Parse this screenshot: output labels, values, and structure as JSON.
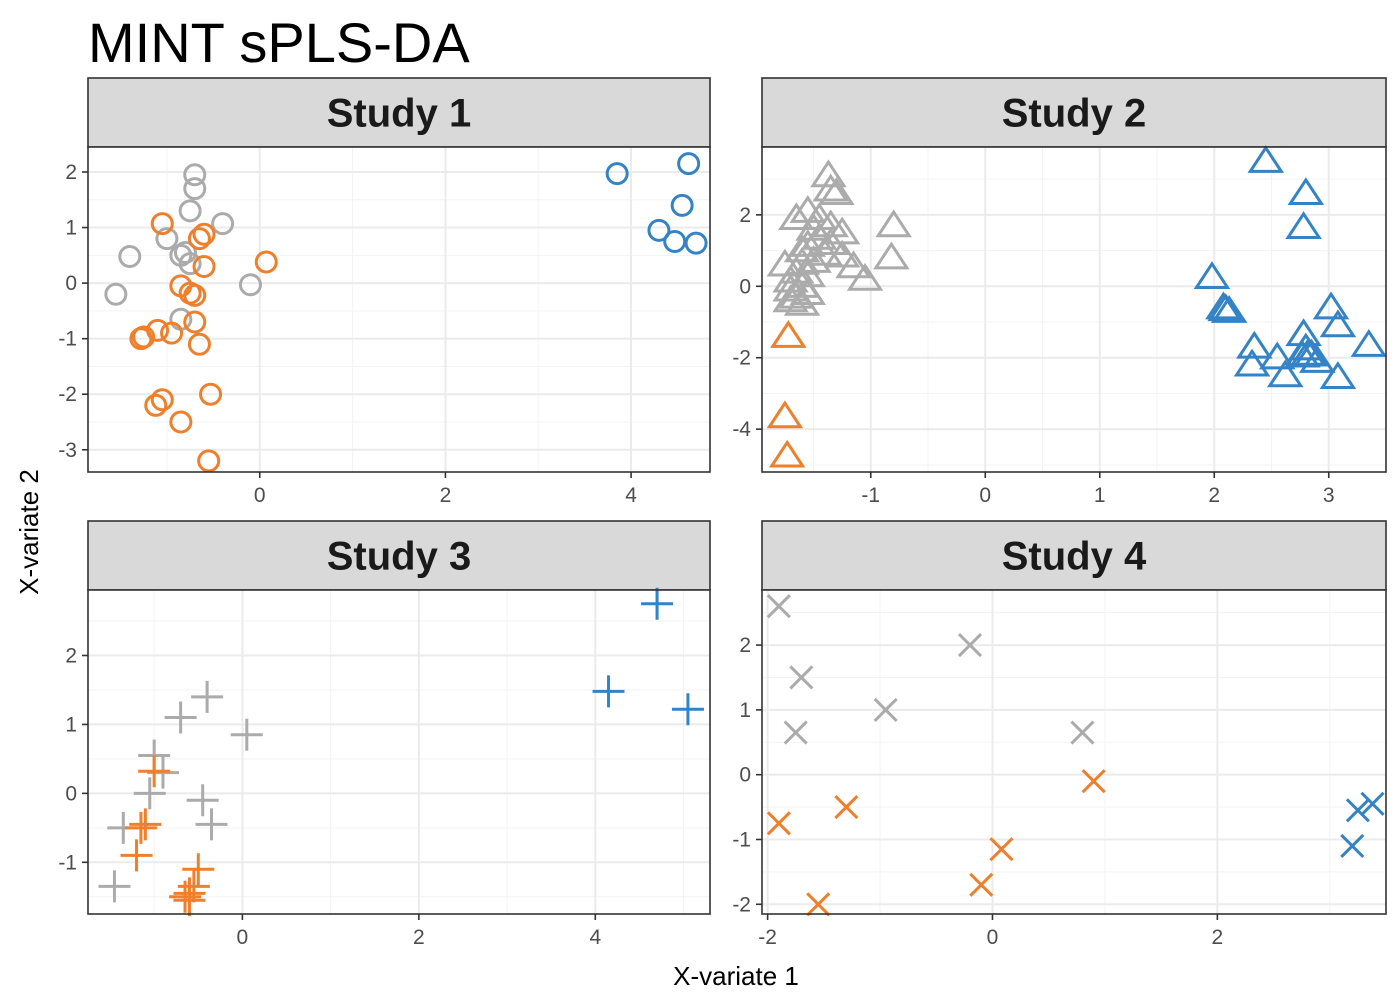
{
  "chart_data": {
    "type": "scatter",
    "title": "MINT sPLS-DA",
    "xlabel": "X-variate 1",
    "ylabel": "X-variate 2",
    "grid": true,
    "legend": "none",
    "group_colors": {
      "grey": "#ababab",
      "orange": "#f07f2b",
      "blue": "#3483c7"
    },
    "panels": [
      {
        "label": "Study 1",
        "marker": "circle",
        "xlim": [
          -1.85,
          4.85
        ],
        "ylim": [
          -3.4,
          2.45
        ],
        "xticks": [
          0,
          2,
          4
        ],
        "yticks": [
          -3,
          -2,
          -1,
          0,
          1,
          2
        ],
        "groups": [
          {
            "color": "grey",
            "points": [
              [
                -0.7,
                1.95
              ],
              [
                -0.7,
                1.7
              ],
              [
                -0.75,
                1.3
              ],
              [
                -0.4,
                1.07
              ],
              [
                -1.0,
                0.8
              ],
              [
                -0.85,
                0.5
              ],
              [
                -0.8,
                0.55
              ],
              [
                -0.75,
                0.35
              ],
              [
                -1.4,
                0.48
              ],
              [
                -1.55,
                -0.2
              ],
              [
                -0.1,
                -0.03
              ],
              [
                -0.85,
                -0.65
              ]
            ]
          },
          {
            "color": "orange",
            "points": [
              [
                -1.05,
                1.07
              ],
              [
                -0.6,
                0.88
              ],
              [
                -0.65,
                0.8
              ],
              [
                -0.6,
                0.3
              ],
              [
                0.07,
                0.38
              ],
              [
                -0.85,
                -0.05
              ],
              [
                -0.75,
                -0.18
              ],
              [
                -0.7,
                -0.22
              ],
              [
                -0.7,
                -0.7
              ],
              [
                -0.95,
                -0.9
              ],
              [
                -1.1,
                -0.85
              ],
              [
                -1.25,
                -0.97
              ],
              [
                -1.28,
                -1.0
              ],
              [
                -0.65,
                -1.1
              ],
              [
                -1.05,
                -2.1
              ],
              [
                -1.12,
                -2.2
              ],
              [
                -0.53,
                -2.0
              ],
              [
                -0.85,
                -2.5
              ],
              [
                -0.55,
                -3.2
              ]
            ]
          },
          {
            "color": "blue",
            "points": [
              [
                3.85,
                1.97
              ],
              [
                4.62,
                2.15
              ],
              [
                4.55,
                1.4
              ],
              [
                4.3,
                0.95
              ],
              [
                4.47,
                0.75
              ],
              [
                4.7,
                0.72
              ]
            ]
          }
        ]
      },
      {
        "label": "Study 2",
        "marker": "triangle",
        "xlim": [
          -1.95,
          3.5
        ],
        "ylim": [
          -5.2,
          3.9
        ],
        "xticks": [
          -1,
          0,
          1,
          2,
          3
        ],
        "yticks": [
          -4,
          -2,
          0,
          2
        ],
        "groups": [
          {
            "color": "grey",
            "points": [
              [
                -1.37,
                3.1
              ],
              [
                -1.35,
                2.7
              ],
              [
                -1.3,
                2.6
              ],
              [
                -1.55,
                2.1
              ],
              [
                -1.65,
                1.9
              ],
              [
                -1.45,
                1.9
              ],
              [
                -1.35,
                1.7
              ],
              [
                -1.5,
                1.6
              ],
              [
                -1.25,
                1.5
              ],
              [
                -1.45,
                1.35
              ],
              [
                -1.35,
                1.2
              ],
              [
                -1.55,
                1.15
              ],
              [
                -1.6,
                1.0
              ],
              [
                -1.4,
                0.9
              ],
              [
                -1.25,
                0.85
              ],
              [
                -1.5,
                0.7
              ],
              [
                -1.6,
                0.65
              ],
              [
                -1.75,
                0.6
              ],
              [
                -1.15,
                0.55
              ],
              [
                -1.65,
                0.4
              ],
              [
                -1.55,
                0.3
              ],
              [
                -1.7,
                0.15
              ],
              [
                -1.6,
                0.0
              ],
              [
                -1.7,
                -0.1
              ],
              [
                -1.55,
                -0.2
              ],
              [
                -1.65,
                -0.3
              ],
              [
                -1.7,
                -0.4
              ],
              [
                -1.6,
                -0.5
              ],
              [
                -1.05,
                0.2
              ],
              [
                -0.8,
                1.7
              ],
              [
                -0.82,
                0.8
              ]
            ]
          },
          {
            "color": "orange",
            "points": [
              [
                -1.72,
                -1.4
              ],
              [
                -1.75,
                -3.65
              ],
              [
                -1.73,
                -4.75
              ]
            ]
          },
          {
            "color": "blue",
            "points": [
              [
                2.45,
                3.5
              ],
              [
                2.8,
                2.6
              ],
              [
                2.78,
                1.65
              ],
              [
                1.98,
                0.25
              ],
              [
                2.08,
                -0.6
              ],
              [
                2.1,
                -0.65
              ],
              [
                2.13,
                -0.7
              ],
              [
                3.02,
                -0.6
              ],
              [
                3.08,
                -1.1
              ],
              [
                2.78,
                -1.35
              ],
              [
                3.35,
                -1.65
              ],
              [
                2.35,
                -1.7
              ],
              [
                2.8,
                -1.75
              ],
              [
                2.82,
                -1.9
              ],
              [
                2.85,
                -1.92
              ],
              [
                2.77,
                -1.95
              ],
              [
                2.55,
                -2.0
              ],
              [
                2.9,
                -2.1
              ],
              [
                2.33,
                -2.2
              ],
              [
                2.62,
                -2.5
              ],
              [
                3.08,
                -2.55
              ]
            ]
          }
        ]
      },
      {
        "label": "Study 3",
        "marker": "plus",
        "xlim": [
          -1.75,
          5.3
        ],
        "ylim": [
          -1.75,
          2.95
        ],
        "xticks": [
          0,
          2,
          4
        ],
        "yticks": [
          -1,
          0,
          1,
          2
        ],
        "groups": [
          {
            "color": "grey",
            "points": [
              [
                -0.4,
                1.4
              ],
              [
                -0.7,
                1.1
              ],
              [
                -1.0,
                0.55
              ],
              [
                0.05,
                0.85
              ],
              [
                -0.9,
                0.3
              ],
              [
                -1.05,
                0.0
              ],
              [
                -0.45,
                -0.1
              ],
              [
                -0.35,
                -0.45
              ],
              [
                -1.35,
                -0.5
              ],
              [
                -1.45,
                -1.35
              ]
            ]
          },
          {
            "color": "orange",
            "points": [
              [
                -1.0,
                0.32
              ],
              [
                -1.1,
                -0.45
              ],
              [
                -1.15,
                -0.5
              ],
              [
                -1.2,
                -0.9
              ],
              [
                -0.5,
                -1.1
              ],
              [
                -0.55,
                -1.35
              ],
              [
                -0.6,
                -1.45
              ],
              [
                -0.65,
                -1.5
              ],
              [
                -0.6,
                -1.55
              ]
            ]
          },
          {
            "color": "blue",
            "points": [
              [
                4.7,
                2.75
              ],
              [
                4.15,
                1.48
              ],
              [
                5.05,
                1.22
              ]
            ]
          }
        ]
      },
      {
        "label": "Study 4",
        "marker": "x",
        "xlim": [
          -2.05,
          3.5
        ],
        "ylim": [
          -2.15,
          2.85
        ],
        "xticks": [
          -2,
          0,
          2
        ],
        "yticks": [
          -2,
          -1,
          0,
          1,
          2
        ],
        "groups": [
          {
            "color": "grey",
            "points": [
              [
                -1.9,
                2.6
              ],
              [
                -1.7,
                1.5
              ],
              [
                -0.2,
                2.0
              ],
              [
                -0.95,
                1.0
              ],
              [
                -1.75,
                0.65
              ],
              [
                0.8,
                0.65
              ]
            ]
          },
          {
            "color": "orange",
            "points": [
              [
                -1.9,
                -0.75
              ],
              [
                -1.3,
                -0.5
              ],
              [
                0.9,
                -0.1
              ],
              [
                0.08,
                -1.15
              ],
              [
                -0.1,
                -1.7
              ],
              [
                -1.55,
                -2.0
              ]
            ]
          },
          {
            "color": "blue",
            "points": [
              [
                3.38,
                -0.45
              ],
              [
                3.25,
                -0.55
              ],
              [
                3.2,
                -1.1
              ]
            ]
          }
        ]
      }
    ]
  }
}
